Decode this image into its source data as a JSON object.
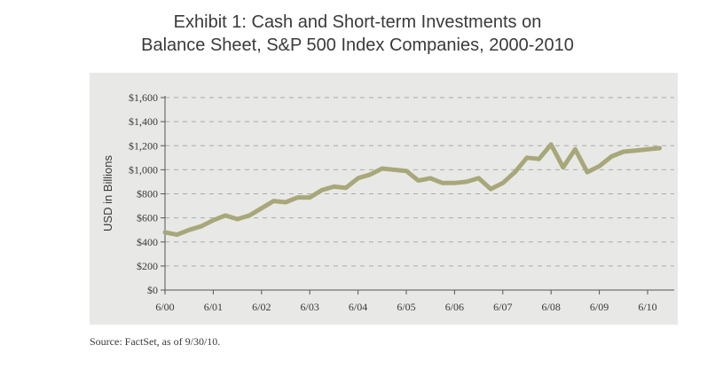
{
  "title_line1": "Exhibit 1: Cash and Short-term Investments on",
  "title_line2": "Balance Sheet, S&P 500 Index Companies, 2000-2010",
  "source": "Source:  FactSet, as of 9/30/10.",
  "colors": {
    "line": "#a8a77a",
    "panel": "#e8e8e6",
    "grid": "#aaaaaa",
    "text": "#3a3a3a"
  },
  "chart_data": {
    "type": "line",
    "ylabel": "USD in Billions",
    "ylim": [
      0,
      1600
    ],
    "yticks": [
      0,
      200,
      400,
      600,
      800,
      1000,
      1200,
      1400,
      1600
    ],
    "ytick_labels": [
      "$0",
      "$200",
      "$400",
      "$600",
      "$800",
      "$1,000",
      "$1,200",
      "$1,400",
      "$1,600"
    ],
    "xticks": [
      0,
      4,
      8,
      12,
      16,
      20,
      24,
      28,
      32,
      36,
      40
    ],
    "xtick_labels": [
      "6/00",
      "6/01",
      "6/02",
      "6/03",
      "6/04",
      "6/05",
      "6/06",
      "6/07",
      "6/08",
      "6/09",
      "6/10"
    ],
    "grid": "horizontal dashed",
    "x": [
      0,
      1,
      2,
      3,
      4,
      5,
      6,
      7,
      8,
      9,
      10,
      11,
      12,
      13,
      14,
      15,
      16,
      17,
      18,
      19,
      20,
      21,
      22,
      23,
      24,
      25,
      26,
      27,
      28,
      29,
      30,
      31,
      32,
      33,
      34,
      35,
      36,
      37,
      38,
      39,
      40,
      41
    ],
    "values": [
      480,
      460,
      500,
      530,
      580,
      620,
      590,
      620,
      680,
      740,
      730,
      770,
      770,
      830,
      860,
      850,
      930,
      960,
      1010,
      1000,
      990,
      910,
      930,
      890,
      890,
      900,
      930,
      840,
      890,
      980,
      1100,
      1090,
      1210,
      1020,
      1170,
      980,
      1030,
      1110,
      1150,
      1160,
      1170,
      1180
    ]
  }
}
